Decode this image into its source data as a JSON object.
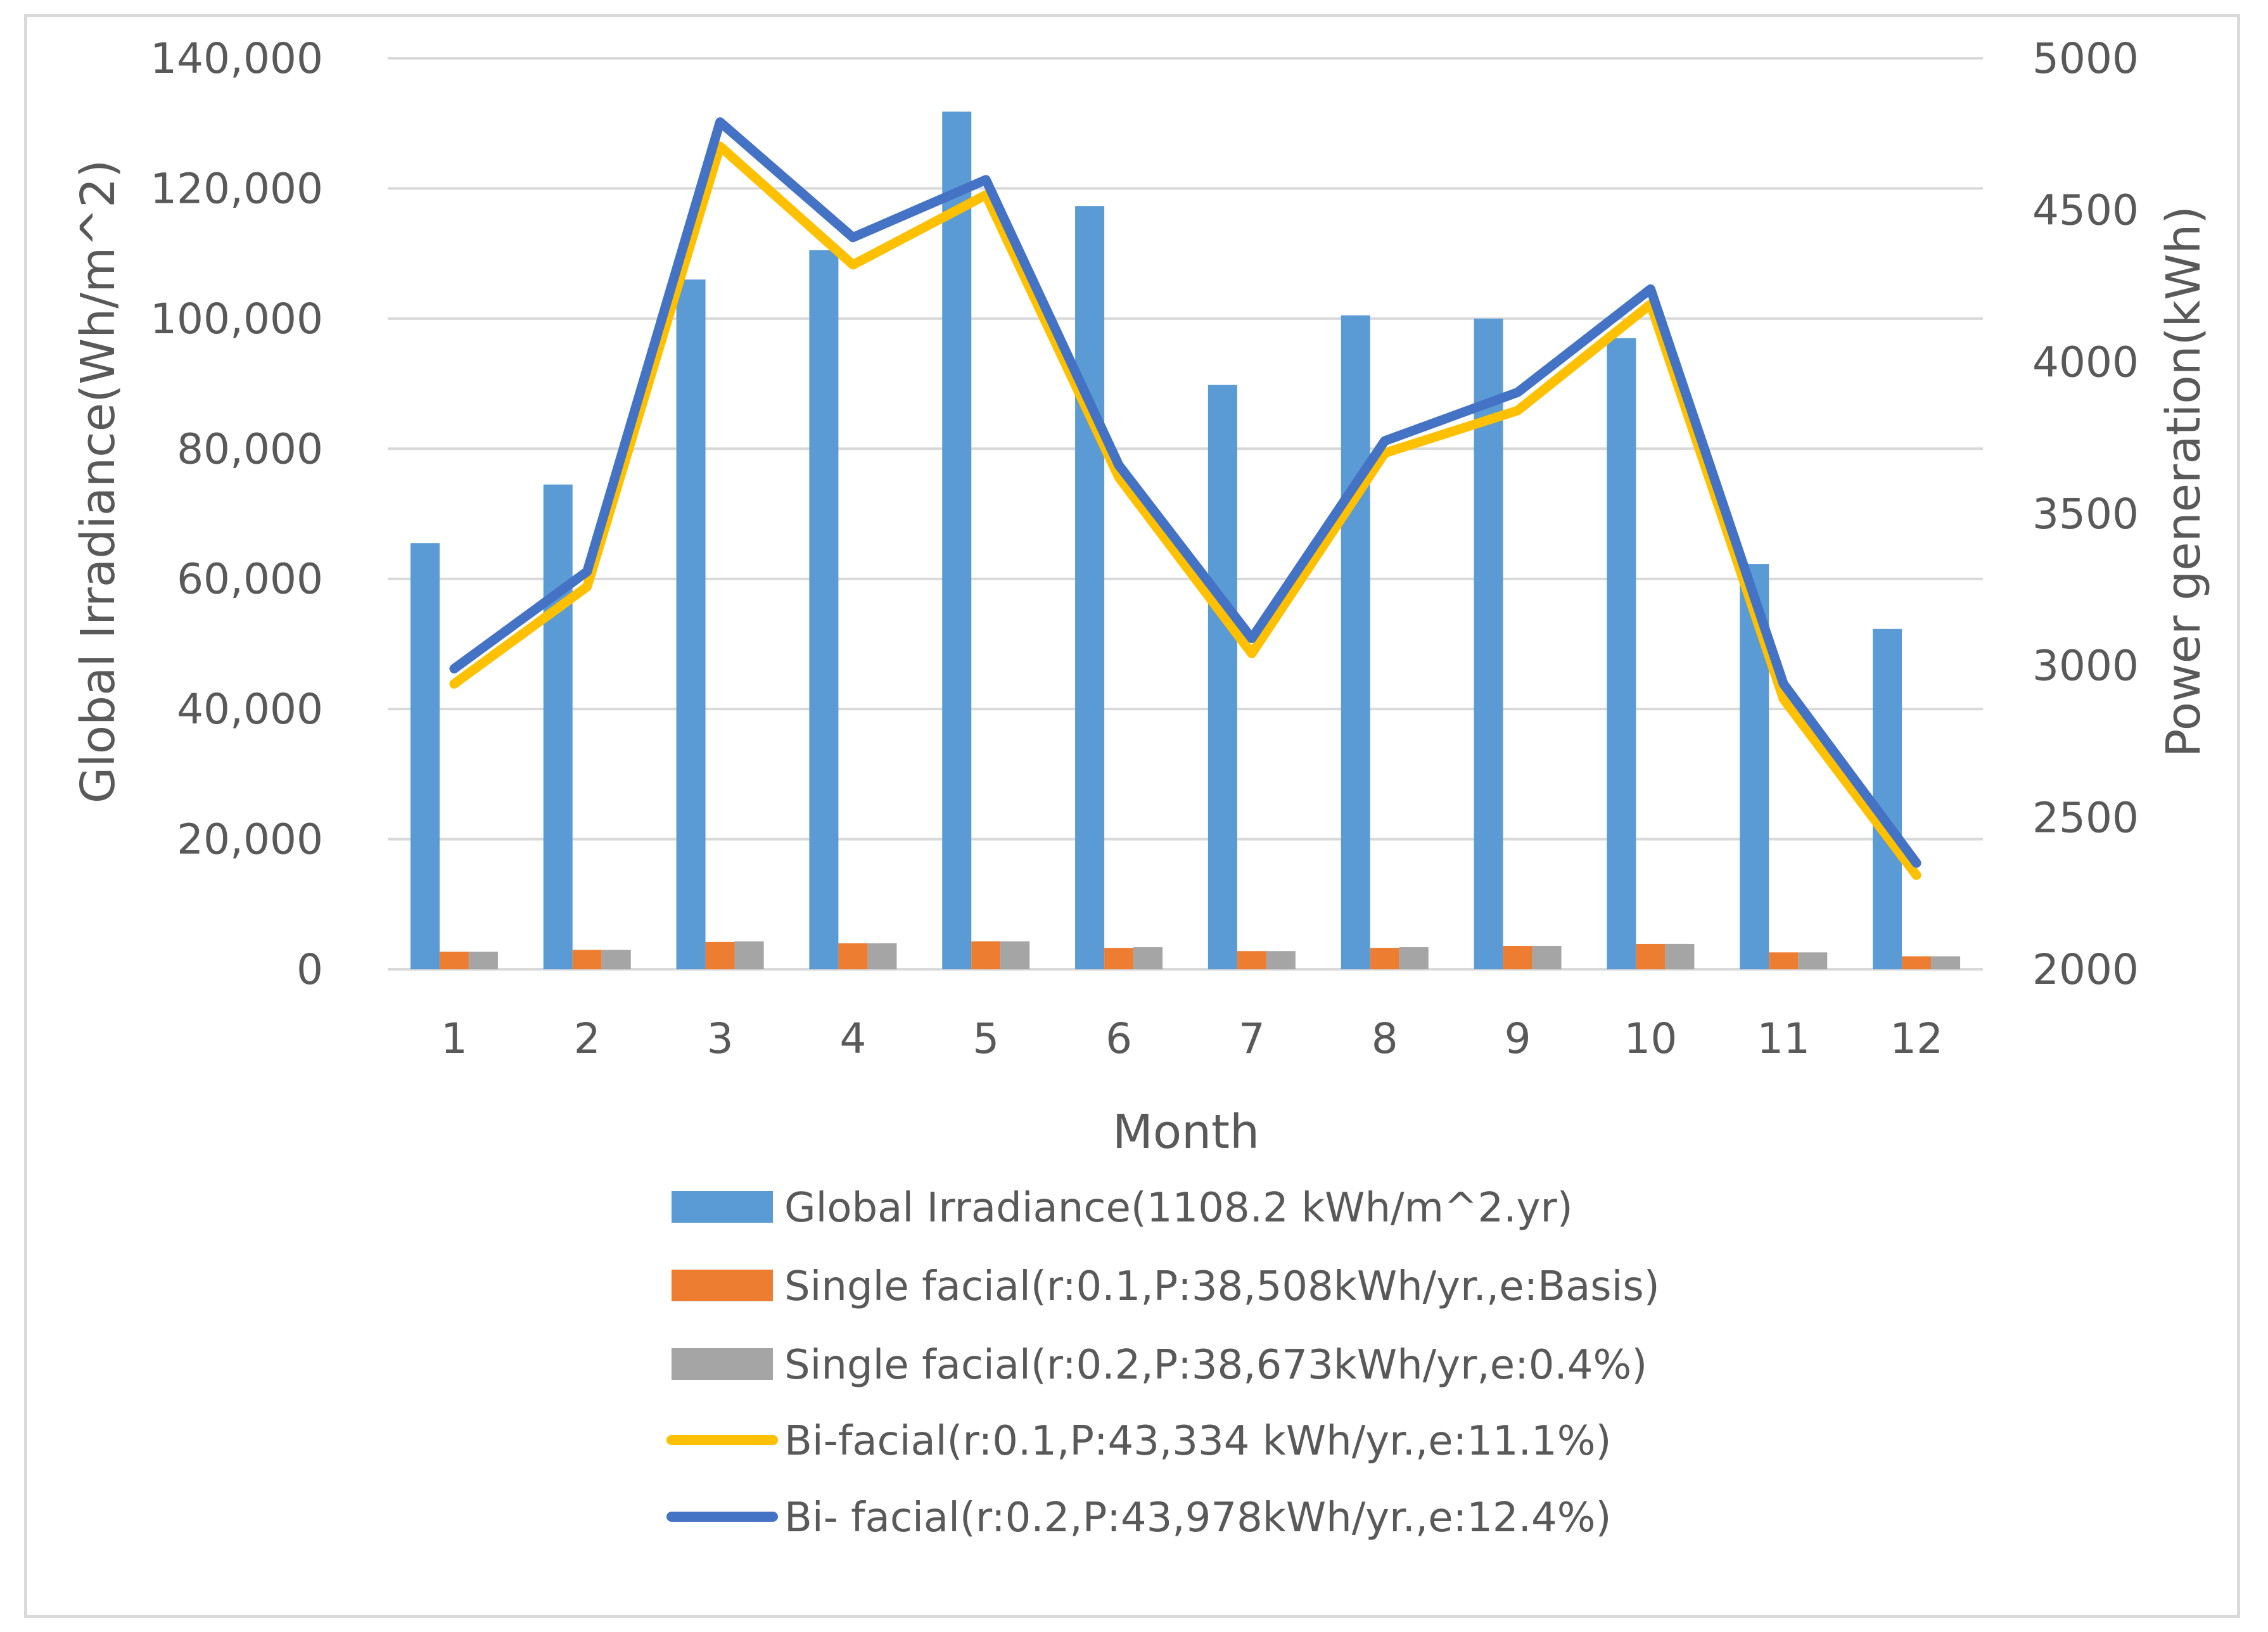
{
  "chart_data": {
    "type": "bar",
    "categories": [
      "1",
      "2",
      "3",
      "4",
      "5",
      "6",
      "7",
      "8",
      "9",
      "10",
      "11",
      "12"
    ],
    "xlabel": "Month",
    "ylabel": "Global Irradiance(Wh/m^2)",
    "y2label": "Power generation(kWh)",
    "ylim": [
      0,
      140000
    ],
    "y2lim": [
      2000,
      5000
    ],
    "y_ticks": [
      "0",
      "20,000",
      "40,000",
      "60,000",
      "80,000",
      "100,000",
      "120,000",
      "140,000"
    ],
    "y2_ticks": [
      "2000",
      "2500",
      "3000",
      "3500",
      "4000",
      "4500",
      "5000"
    ],
    "grid": true,
    "legend_position": "bottom",
    "series": [
      {
        "name": "Global Irradiance(1108.2 kWh/m^2.yr)",
        "type": "bar",
        "axis": "left",
        "color": "#5b9bd5",
        "values": [
          65500,
          74500,
          106000,
          110500,
          131800,
          117300,
          89800,
          100500,
          100000,
          97000,
          62300,
          52300
        ]
      },
      {
        "name": "Single facial(r:0.1,P:38,508kWh/yr.,e:Basis)",
        "type": "bar",
        "axis": "left",
        "color": "#ed7d31",
        "values": [
          2700,
          3000,
          4200,
          4000,
          4300,
          3300,
          2800,
          3300,
          3600,
          3900,
          2600,
          2000
        ]
      },
      {
        "name": "Single facial(r:0.2,P:38,673kWh/yr,e:0.4%)",
        "type": "bar",
        "axis": "left",
        "color": "#a5a5a5",
        "values": [
          2700,
          3000,
          4300,
          4000,
          4300,
          3400,
          2800,
          3400,
          3600,
          3900,
          2600,
          2000
        ]
      },
      {
        "name": "Bi-facial(r:0.1,P:43,334 kWh/yr.,e:11.1%)",
        "type": "line",
        "axis": "right",
        "color": "#ffc000",
        "values": [
          2940,
          3260,
          4710,
          4320,
          4550,
          3620,
          3040,
          3700,
          3840,
          4190,
          2890,
          2310
        ]
      },
      {
        "name": "Bi- facial(r:0.2,P:43,978kWh/yr.,e:12.4%)",
        "type": "line",
        "axis": "right",
        "color": "#4472c4",
        "values": [
          2990,
          3310,
          4790,
          4410,
          4600,
          3660,
          3090,
          3740,
          3900,
          4240,
          2940,
          2350
        ]
      }
    ]
  }
}
